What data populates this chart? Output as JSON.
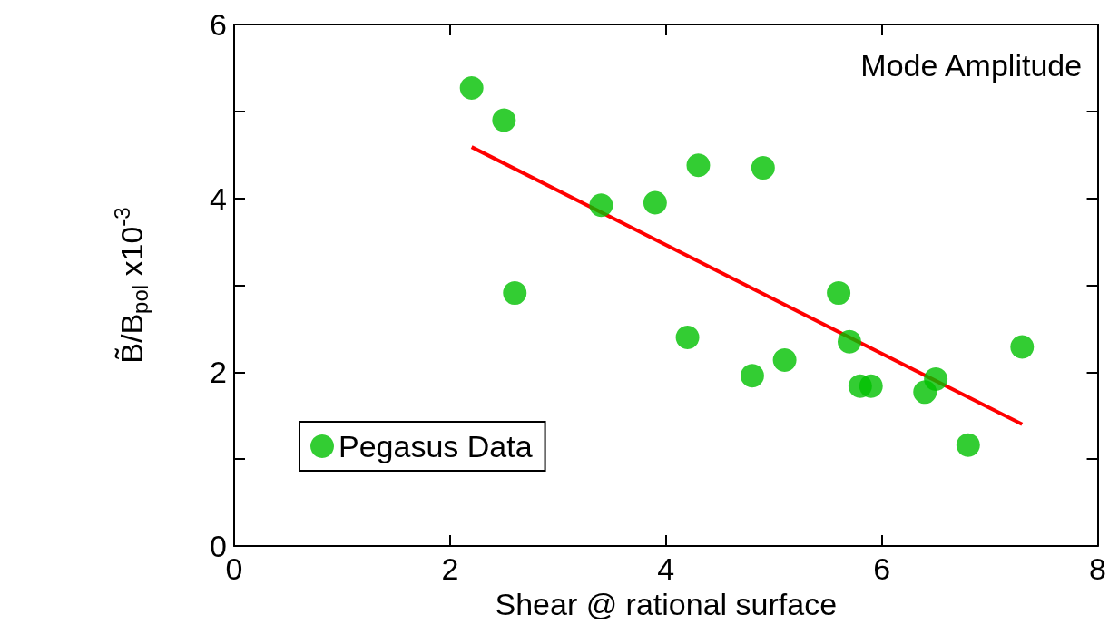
{
  "chart_data": {
    "type": "scatter",
    "xlabel": "Shear @ rational surface",
    "ylabel": "B̃/B$_{pol}$ x10$^{-3}$",
    "annotations": [
      "Mode Amplitude"
    ],
    "xlim": [
      0,
      8
    ],
    "xticks": [
      0,
      2,
      4,
      6,
      8
    ],
    "ylim": [
      0,
      6
    ],
    "yticks": [
      0,
      {
        "value": 1,
        "label": null
      },
      2,
      {
        "value": 3,
        "label": null
      },
      4,
      {
        "value": 5,
        "label": null
      },
      6
    ],
    "grid": false,
    "legend": "bottom left",
    "series": [
      {
        "name": "Pegasus Data",
        "color": "#00c000",
        "marker": "circle",
        "x": [
          2.2,
          2.5,
          2.6,
          3.4,
          3.9,
          4.2,
          4.3,
          4.8,
          4.9,
          5.1,
          5.6,
          5.7,
          5.8,
          5.9,
          6.4,
          6.5,
          6.8,
          7.3
        ],
        "values": [
          5.27,
          4.9,
          2.91,
          3.92,
          3.95,
          2.4,
          4.38,
          1.96,
          4.35,
          2.14,
          2.91,
          2.35,
          1.84,
          1.84,
          1.77,
          1.92,
          1.16,
          2.29
        ]
      },
      {
        "type": "line",
        "color": "#ff0000",
        "line_style": "solid",
        "x": [
          2.2,
          7.3
        ],
        "values": [
          4.59,
          1.4
        ]
      }
    ]
  }
}
